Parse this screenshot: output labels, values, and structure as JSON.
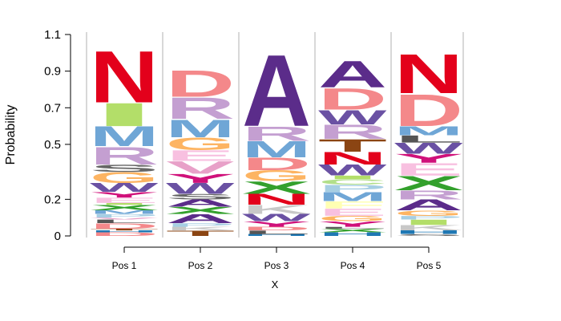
{
  "chart_data": {
    "type": "sequence-logo",
    "title": "",
    "xlabel": "X",
    "ylabel": "Probability",
    "ylim": [
      0,
      1.1
    ],
    "yticks": [
      0,
      0.2,
      0.5,
      0.7,
      0.9,
      1.1
    ],
    "ytick_labels": [
      "0",
      "0.2",
      "0.5",
      "0.7",
      "0.9",
      "1.1"
    ],
    "grid": false,
    "categories": [
      "Pos 1",
      "Pos 2",
      "Pos 3",
      "Pos 4",
      "Pos 5"
    ],
    "colors": {
      "A": "#5b2c8a",
      "C": "#b2df8a",
      "D": "#f4888a",
      "E": "#f8c0e0",
      "F": "#ffffb3",
      "G": "#fdb462",
      "H": "#1f78b4",
      "I": "#b3de69",
      "K": "#c8c8c8",
      "L": "#555555",
      "M": "#6fa6d6",
      "N": "#e3001b",
      "P": "#a6cee3",
      "Q": "#cab2d6",
      "R": "#c49fd1",
      "S": "#666666",
      "T": "#8b4513",
      "V": "#e8a0c8",
      "W": "#6a51a3",
      "Y": "#d0107a",
      "X": "#33a02c",
      "Z": "#444444"
    },
    "stacks": [
      {
        "position": "Pos 1",
        "letters": [
          {
            "letter": "D",
            "value": 0.02
          },
          {
            "letter": "H",
            "value": 0.01
          },
          {
            "letter": "T",
            "value": 0.01
          },
          {
            "letter": "D",
            "value": 0.03
          },
          {
            "letter": "L",
            "value": 0.02
          },
          {
            "letter": "V",
            "value": 0.01
          },
          {
            "letter": "P",
            "value": 0.02
          },
          {
            "letter": "M",
            "value": 0.02
          },
          {
            "letter": "X",
            "value": 0.03
          },
          {
            "letter": "I",
            "value": 0.01
          },
          {
            "letter": "E",
            "value": 0.03
          },
          {
            "letter": "Y",
            "value": 0.03
          },
          {
            "letter": "W",
            "value": 0.05
          },
          {
            "letter": "G",
            "value": 0.06
          },
          {
            "letter": "S",
            "value": 0.04
          },
          {
            "letter": "R",
            "value": 0.1
          },
          {
            "letter": "M",
            "value": 0.11
          },
          {
            "letter": "I",
            "value": 0.13
          },
          {
            "letter": "N",
            "value": 0.29
          }
        ]
      },
      {
        "position": "Pos 2",
        "letters": [
          {
            "letter": "T",
            "value": 0.03
          },
          {
            "letter": "K",
            "value": 0.02
          },
          {
            "letter": "P",
            "value": 0.02
          },
          {
            "letter": "A",
            "value": 0.05
          },
          {
            "letter": "X",
            "value": 0.04
          },
          {
            "letter": "A",
            "value": 0.04
          },
          {
            "letter": "S",
            "value": 0.03
          },
          {
            "letter": "W",
            "value": 0.06
          },
          {
            "letter": "Y",
            "value": 0.05
          },
          {
            "letter": "V",
            "value": 0.07
          },
          {
            "letter": "E",
            "value": 0.06
          },
          {
            "letter": "G",
            "value": 0.07
          },
          {
            "letter": "M",
            "value": 0.1
          },
          {
            "letter": "R",
            "value": 0.12
          },
          {
            "letter": "D",
            "value": 0.15
          }
        ]
      },
      {
        "position": "Pos 3",
        "letters": [
          {
            "letter": "H",
            "value": 0.01
          },
          {
            "letter": "L",
            "value": 0.02
          },
          {
            "letter": "D",
            "value": 0.02
          },
          {
            "letter": "Y",
            "value": 0.03
          },
          {
            "letter": "W",
            "value": 0.04
          },
          {
            "letter": "K",
            "value": 0.05
          },
          {
            "letter": "N",
            "value": 0.06
          },
          {
            "letter": "X",
            "value": 0.07
          },
          {
            "letter": "G",
            "value": 0.06
          },
          {
            "letter": "D",
            "value": 0.07
          },
          {
            "letter": "M",
            "value": 0.09
          },
          {
            "letter": "R",
            "value": 0.08
          },
          {
            "letter": "A",
            "value": 0.4
          }
        ]
      },
      {
        "position": "Pos 4",
        "letters": [
          {
            "letter": "H",
            "value": 0.02
          },
          {
            "letter": "X",
            "value": 0.02
          },
          {
            "letter": "L",
            "value": 0.01
          },
          {
            "letter": "Y",
            "value": 0.03
          },
          {
            "letter": "G",
            "value": 0.03
          },
          {
            "letter": "E",
            "value": 0.04
          },
          {
            "letter": "F",
            "value": 0.04
          },
          {
            "letter": "M",
            "value": 0.05
          },
          {
            "letter": "P",
            "value": 0.04
          },
          {
            "letter": "C",
            "value": 0.03
          },
          {
            "letter": "I",
            "value": 0.02
          },
          {
            "letter": "W",
            "value": 0.06
          },
          {
            "letter": "N",
            "value": 0.07
          },
          {
            "letter": "T",
            "value": 0.07
          },
          {
            "letter": "R",
            "value": 0.08
          },
          {
            "letter": "W",
            "value": 0.08
          },
          {
            "letter": "D",
            "value": 0.12
          },
          {
            "letter": "A",
            "value": 0.15
          }
        ]
      },
      {
        "position": "Pos 5",
        "letters": [
          {
            "letter": "S",
            "value": 0.01
          },
          {
            "letter": "H",
            "value": 0.02
          },
          {
            "letter": "K",
            "value": 0.03
          },
          {
            "letter": "I",
            "value": 0.03
          },
          {
            "letter": "P",
            "value": 0.02
          },
          {
            "letter": "G",
            "value": 0.03
          },
          {
            "letter": "A",
            "value": 0.06
          },
          {
            "letter": "R",
            "value": 0.05
          },
          {
            "letter": "X",
            "value": 0.08
          },
          {
            "letter": "E",
            "value": 0.07
          },
          {
            "letter": "Y",
            "value": 0.05
          },
          {
            "letter": "W",
            "value": 0.06
          },
          {
            "letter": "L",
            "value": 0.04
          },
          {
            "letter": "M",
            "value": 0.05
          },
          {
            "letter": "D",
            "value": 0.18
          },
          {
            "letter": "N",
            "value": 0.22
          }
        ]
      }
    ]
  }
}
